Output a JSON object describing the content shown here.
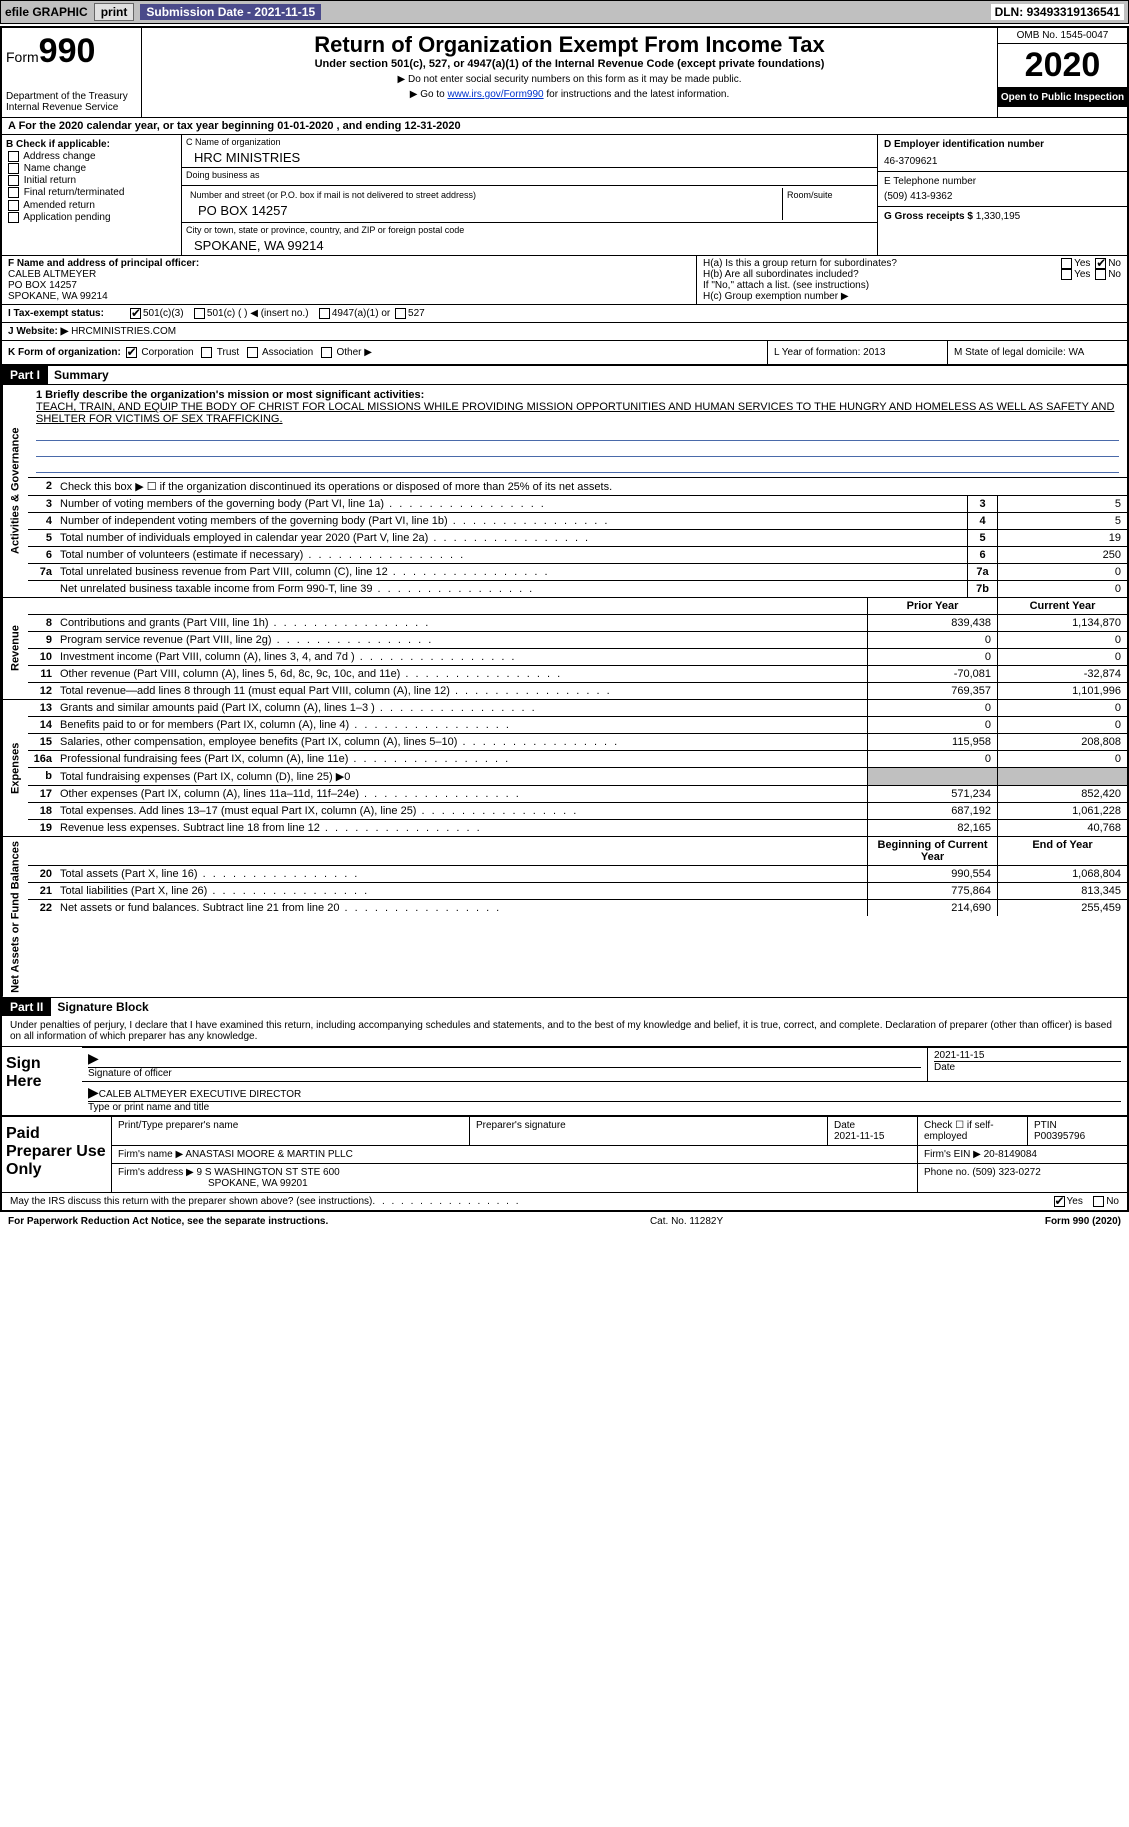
{
  "topbar": {
    "efile": "efile GRAPHIC",
    "print": "print",
    "sub_label": "Submission Date - ",
    "sub_date": "2021-11-15",
    "dln_label": "DLN: ",
    "dln": "93493319136541"
  },
  "header": {
    "form_word": "Form",
    "form_num": "990",
    "dept": "Department of the Treasury\nInternal Revenue Service",
    "title": "Return of Organization Exempt From Income Tax",
    "sub": "Under section 501(c), 527, or 4947(a)(1) of the Internal Revenue Code (except private foundations)",
    "note1": "▶ Do not enter social security numbers on this form as it may be made public.",
    "note2_pre": "▶ Go to ",
    "note2_link": "www.irs.gov/Form990",
    "note2_post": " for instructions and the latest information.",
    "omb": "OMB No. 1545-0047",
    "year": "2020",
    "inspect": "Open to Public Inspection"
  },
  "row_a": "A For the 2020 calendar year, or tax year beginning 01-01-2020   , and ending 12-31-2020",
  "col_b": {
    "title": "B Check if applicable:",
    "items": [
      "Address change",
      "Name change",
      "Initial return",
      "Final return/terminated",
      "Amended return",
      "Application pending"
    ]
  },
  "col_c": {
    "name_label": "C Name of organization",
    "name": "HRC MINISTRIES",
    "dba_label": "Doing business as",
    "dba": "",
    "addr_label": "Number and street (or P.O. box if mail is not delivered to street address)",
    "room_label": "Room/suite",
    "addr": "PO BOX 14257",
    "city_label": "City or town, state or province, country, and ZIP or foreign postal code",
    "city": "SPOKANE, WA  99214"
  },
  "col_d": {
    "ein_label": "D Employer identification number",
    "ein": "46-3709621",
    "phone_label": "E Telephone number",
    "phone": "(509) 413-9362",
    "gross_label": "G Gross receipts $ ",
    "gross": "1,330,195"
  },
  "row_f": {
    "label": "F  Name and address of principal officer:",
    "name": "CALEB ALTMEYER",
    "addr1": "PO BOX 14257",
    "addr2": "SPOKANE, WA  99214"
  },
  "row_h": {
    "ha": "H(a)  Is this a group return for subordinates?",
    "hb": "H(b)  Are all subordinates included?",
    "hb_note": "If \"No,\" attach a list. (see instructions)",
    "hc": "H(c)  Group exemption number ▶",
    "yes": "Yes",
    "no": "No"
  },
  "row_i": {
    "label": "I  Tax-exempt status:",
    "opts": [
      "501(c)(3)",
      "501(c) (  ) ◀ (insert no.)",
      "4947(a)(1) or",
      "527"
    ]
  },
  "row_j": {
    "label": "J  Website: ▶ ",
    "val": "HRCMINISTRIES.COM"
  },
  "row_k": {
    "label": "K Form of organization:",
    "opts": [
      "Corporation",
      "Trust",
      "Association",
      "Other ▶"
    ]
  },
  "row_lm": {
    "l": "L Year of formation: 2013",
    "m": "M State of legal domicile: WA"
  },
  "part1": {
    "header": "Part I",
    "title": "Summary",
    "line1_label": "1  Briefly describe the organization's mission or most significant activities:",
    "mission": "TEACH, TRAIN, AND EQUIP THE BODY OF CHRIST FOR LOCAL MISSIONS WHILE PROVIDING MISSION OPPORTUNITIES AND HUMAN SERVICES TO THE HUNGRY AND HOMELESS AS WELL AS SAFETY AND SHELTER FOR VICTIMS OF SEX TRAFFICKING.",
    "line2": "Check this box ▶ ☐  if the organization discontinued its operations or disposed of more than 25% of its net assets.",
    "sections": {
      "gov": "Activities & Governance",
      "rev": "Revenue",
      "exp": "Expenses",
      "net": "Net Assets or Fund Balances"
    },
    "cols": {
      "prior": "Prior Year",
      "current": "Current Year",
      "boy": "Beginning of Current Year",
      "eoy": "End of Year"
    },
    "lines_gov": [
      {
        "n": "3",
        "d": "Number of voting members of the governing body (Part VI, line 1a)",
        "box": "3",
        "v": "5"
      },
      {
        "n": "4",
        "d": "Number of independent voting members of the governing body (Part VI, line 1b)",
        "box": "4",
        "v": "5"
      },
      {
        "n": "5",
        "d": "Total number of individuals employed in calendar year 2020 (Part V, line 2a)",
        "box": "5",
        "v": "19"
      },
      {
        "n": "6",
        "d": "Total number of volunteers (estimate if necessary)",
        "box": "6",
        "v": "250"
      },
      {
        "n": "7a",
        "d": "Total unrelated business revenue from Part VIII, column (C), line 12",
        "box": "7a",
        "v": "0"
      },
      {
        "n": "",
        "d": "Net unrelated business taxable income from Form 990-T, line 39",
        "box": "7b",
        "v": "0"
      }
    ],
    "lines_rev": [
      {
        "n": "8",
        "d": "Contributions and grants (Part VIII, line 1h)",
        "p": "839,438",
        "c": "1,134,870"
      },
      {
        "n": "9",
        "d": "Program service revenue (Part VIII, line 2g)",
        "p": "0",
        "c": "0"
      },
      {
        "n": "10",
        "d": "Investment income (Part VIII, column (A), lines 3, 4, and 7d )",
        "p": "0",
        "c": "0"
      },
      {
        "n": "11",
        "d": "Other revenue (Part VIII, column (A), lines 5, 6d, 8c, 9c, 10c, and 11e)",
        "p": "-70,081",
        "c": "-32,874"
      },
      {
        "n": "12",
        "d": "Total revenue—add lines 8 through 11 (must equal Part VIII, column (A), line 12)",
        "p": "769,357",
        "c": "1,101,996"
      }
    ],
    "lines_exp": [
      {
        "n": "13",
        "d": "Grants and similar amounts paid (Part IX, column (A), lines 1–3 )",
        "p": "0",
        "c": "0"
      },
      {
        "n": "14",
        "d": "Benefits paid to or for members (Part IX, column (A), line 4)",
        "p": "0",
        "c": "0"
      },
      {
        "n": "15",
        "d": "Salaries, other compensation, employee benefits (Part IX, column (A), lines 5–10)",
        "p": "115,958",
        "c": "208,808"
      },
      {
        "n": "16a",
        "d": "Professional fundraising fees (Part IX, column (A), line 11e)",
        "p": "0",
        "c": "0"
      },
      {
        "n": "b",
        "d": "Total fundraising expenses (Part IX, column (D), line 25) ▶0",
        "p": "",
        "c": "",
        "shaded": true
      },
      {
        "n": "17",
        "d": "Other expenses (Part IX, column (A), lines 11a–11d, 11f–24e)",
        "p": "571,234",
        "c": "852,420"
      },
      {
        "n": "18",
        "d": "Total expenses. Add lines 13–17 (must equal Part IX, column (A), line 25)",
        "p": "687,192",
        "c": "1,061,228"
      },
      {
        "n": "19",
        "d": "Revenue less expenses. Subtract line 18 from line 12",
        "p": "82,165",
        "c": "40,768"
      }
    ],
    "lines_net": [
      {
        "n": "20",
        "d": "Total assets (Part X, line 16)",
        "p": "990,554",
        "c": "1,068,804"
      },
      {
        "n": "21",
        "d": "Total liabilities (Part X, line 26)",
        "p": "775,864",
        "c": "813,345"
      },
      {
        "n": "22",
        "d": "Net assets or fund balances. Subtract line 21 from line 20",
        "p": "214,690",
        "c": "255,459"
      }
    ]
  },
  "part2": {
    "header": "Part II",
    "title": "Signature Block",
    "decl": "Under penalties of perjury, I declare that I have examined this return, including accompanying schedules and statements, and to the best of my knowledge and belief, it is true, correct, and complete. Declaration of preparer (other than officer) is based on all information of which preparer has any knowledge.",
    "sign_here": "Sign Here",
    "sig_officer": "Signature of officer",
    "sig_date": "2021-11-15",
    "date_label": "Date",
    "officer_name": "CALEB ALTMEYER  EXECUTIVE DIRECTOR",
    "type_label": "Type or print name and title"
  },
  "prep": {
    "title": "Paid Preparer Use Only",
    "h_name": "Print/Type preparer's name",
    "h_sig": "Preparer's signature",
    "h_date": "Date",
    "date": "2021-11-15",
    "h_check": "Check ☐ if self-employed",
    "h_ptin": "PTIN",
    "ptin": "P00395796",
    "firm_label": "Firm's name    ▶ ",
    "firm": "ANASTASI MOORE & MARTIN PLLC",
    "ein_label": "Firm's EIN ▶ ",
    "ein": "20-8149084",
    "addr_label": "Firm's address ▶ ",
    "addr1": "9 S WASHINGTON ST STE 600",
    "addr2": "SPOKANE, WA  99201",
    "phone_label": "Phone no. ",
    "phone": "(509) 323-0272"
  },
  "footer": {
    "discuss": "May the IRS discuss this return with the preparer shown above? (see instructions)",
    "yes": "Yes",
    "no": "No",
    "pra": "For Paperwork Reduction Act Notice, see the separate instructions.",
    "cat": "Cat. No. 11282Y",
    "form": "Form 990 (2020)"
  }
}
